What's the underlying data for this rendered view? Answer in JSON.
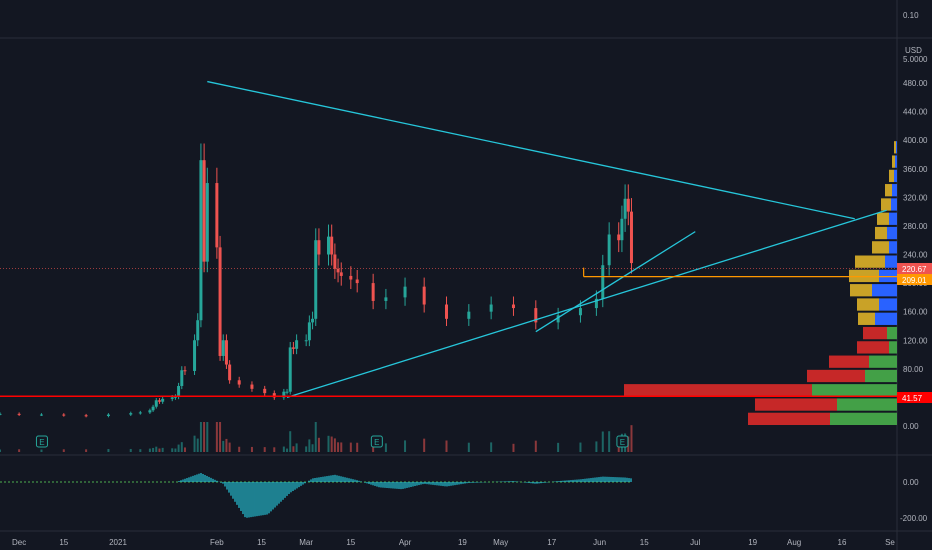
{
  "colors": {
    "background": "#131722",
    "up": "#26a69a",
    "down": "#ef5350",
    "trendline": "#26c6da",
    "horizontal_red": "#ff0000",
    "horizontal_orange": "#ff9800",
    "vp_up": "#2962ff",
    "vp_down": "#ef5350",
    "vp_gold": "#c9a227",
    "vp_green": "#43a047",
    "vp_red": "#c62828",
    "grid": "#1e222d"
  },
  "top_panel": {
    "tick": "0.10"
  },
  "price_axis": {
    "currency": "USD",
    "currency_rate": "5.0000",
    "ticks": [
      "480.00",
      "440.00",
      "400.00",
      "360.00",
      "320.00",
      "280.00",
      "240.00",
      "200.00",
      "160.00",
      "120.00",
      "80.00",
      "40.00",
      "0.00"
    ],
    "last_price_label": "220.67",
    "orange_level_label": "209.01",
    "red_level_label": "41.57"
  },
  "osc_axis": {
    "ticks": [
      "0.00",
      "-200.00"
    ]
  },
  "time_axis": {
    "ticks": [
      "Dec",
      "15",
      "2021",
      "Feb",
      "15",
      "Mar",
      "15",
      "Apr",
      "19",
      "May",
      "17",
      "Jun",
      "15",
      "Jul",
      "19",
      "Aug",
      "16",
      "Se"
    ]
  },
  "earnings_markers": [
    {
      "label": "E",
      "date": "2020-12-08"
    },
    {
      "label": "E",
      "date": "2021-03-23"
    },
    {
      "label": "E",
      "date": "2021-06-08"
    }
  ],
  "chart_data": {
    "type": "candlestick",
    "title": "",
    "xlabel": "",
    "ylabel": "USD",
    "ylim": [
      -20,
      500
    ],
    "grid": false,
    "series": [
      {
        "kind": "ohlc-close-approx",
        "dates": [
          "2020-11-25",
          "2020-12-01",
          "2020-12-08",
          "2020-12-15",
          "2020-12-22",
          "2020-12-29",
          "2021-01-05",
          "2021-01-08",
          "2021-01-11",
          "2021-01-12",
          "2021-01-13",
          "2021-01-14",
          "2021-01-15",
          "2021-01-18",
          "2021-01-19",
          "2021-01-20",
          "2021-01-21",
          "2021-01-22",
          "2021-01-25",
          "2021-01-26",
          "2021-01-27",
          "2021-01-28",
          "2021-01-29",
          "2021-02-01",
          "2021-02-02",
          "2021-02-03",
          "2021-02-04",
          "2021-02-05",
          "2021-02-08",
          "2021-02-12",
          "2021-02-16",
          "2021-02-19",
          "2021-02-22",
          "2021-02-23",
          "2021-02-24",
          "2021-02-25",
          "2021-02-26",
          "2021-03-01",
          "2021-03-02",
          "2021-03-03",
          "2021-03-04",
          "2021-03-05",
          "2021-03-08",
          "2021-03-09",
          "2021-03-10",
          "2021-03-11",
          "2021-03-12",
          "2021-03-15",
          "2021-03-17",
          "2021-03-22",
          "2021-03-26",
          "2021-04-01",
          "2021-04-07",
          "2021-04-14",
          "2021-04-21",
          "2021-04-28",
          "2021-05-05",
          "2021-05-12",
          "2021-05-19",
          "2021-05-26",
          "2021-05-31",
          "2021-06-02",
          "2021-06-04",
          "2021-06-07",
          "2021-06-08",
          "2021-06-09",
          "2021-06-10",
          "2021-06-11"
        ],
        "close": [
          17,
          16,
          16,
          15,
          14,
          16,
          18,
          19,
          22,
          27,
          36,
          34,
          38,
          40,
          41,
          56,
          78,
          77,
          120,
          148,
          372,
          230,
          340,
          250,
          98,
          120,
          86,
          64,
          58,
          52,
          46,
          40,
          48,
          48,
          110,
          108,
          120,
          120,
          145,
          150,
          260,
          240,
          265,
          240,
          220,
          215,
          210,
          205,
          200,
          175,
          180,
          195,
          170,
          150,
          160,
          170,
          165,
          145,
          155,
          165,
          178,
          225,
          268,
          260,
          290,
          318,
          300,
          228
        ]
      }
    ],
    "trendlines": [
      {
        "name": "upper",
        "from": [
          "2021-01-29",
          482
        ],
        "to": [
          "2021-08-20",
          290
        ]
      },
      {
        "name": "lower",
        "from": [
          "2021-02-23",
          40
        ],
        "to": [
          "2021-08-30",
          302
        ]
      },
      {
        "name": "short",
        "from": [
          "2021-05-12",
          132
        ],
        "to": [
          "2021-07-01",
          272
        ]
      }
    ],
    "horizontal_lines": [
      {
        "name": "red_support",
        "value": 41.57
      },
      {
        "name": "orange_level",
        "value": 209.01,
        "from": "2021-05-27"
      }
    ],
    "volume_profile_price_levels": [
      0,
      20,
      40,
      60,
      80,
      100,
      120,
      140,
      160,
      180,
      200,
      220,
      240,
      260,
      280,
      300,
      320,
      340,
      360,
      380,
      400
    ],
    "oscillator": {
      "type": "histogram",
      "ylim": [
        -260,
        60
      ],
      "values_description_points": [
        [
          "2021-01-20",
          5
        ],
        [
          "2021-01-27",
          50
        ],
        [
          "2021-02-03",
          -10
        ],
        [
          "2021-02-10",
          -200
        ],
        [
          "2021-02-17",
          -180
        ],
        [
          "2021-02-24",
          -60
        ],
        [
          "2021-03-03",
          20
        ],
        [
          "2021-03-10",
          40
        ],
        [
          "2021-03-17",
          10
        ],
        [
          "2021-03-24",
          -30
        ],
        [
          "2021-03-31",
          -40
        ],
        [
          "2021-04-07",
          -10
        ],
        [
          "2021-04-14",
          -25
        ],
        [
          "2021-04-21",
          -5
        ],
        [
          "2021-04-28",
          0
        ],
        [
          "2021-05-05",
          5
        ],
        [
          "2021-05-12",
          -10
        ],
        [
          "2021-05-19",
          5
        ],
        [
          "2021-05-26",
          15
        ],
        [
          "2021-06-02",
          30
        ],
        [
          "2021-06-09",
          25
        ],
        [
          "2021-06-11",
          20
        ]
      ]
    }
  }
}
